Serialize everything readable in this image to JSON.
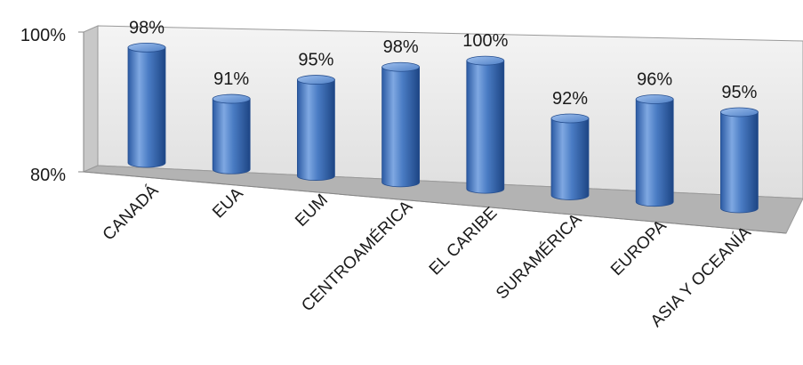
{
  "chart_data": {
    "type": "bar",
    "style": "3d-cylinder",
    "categories": [
      "CANADÁ",
      "EUA",
      "EUM",
      "CENTROAMÉRICA",
      "EL CARIBE",
      "SURAMÉRICA",
      "EUROPA",
      "ASIA Y OCEANÍA"
    ],
    "values": [
      98,
      91,
      95,
      98,
      100,
      92,
      96,
      95
    ],
    "data_labels": [
      "98%",
      "91%",
      "95%",
      "98%",
      "100%",
      "92%",
      "96%",
      "95%"
    ],
    "y_ticks": [
      "100%",
      "80%"
    ],
    "ylim": [
      80,
      100
    ],
    "grid": false,
    "legend": "none",
    "colors": {
      "bar": "#4a7cc4",
      "bar_dark": "#1f4e94",
      "bar_light": "#8fb3e6",
      "back_wall": "#ececec",
      "side_wall": "#c4c4c4",
      "floor": "#b3b3b3"
    }
  }
}
